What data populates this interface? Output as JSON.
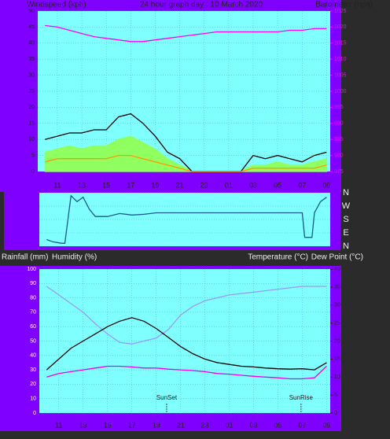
{
  "chart_data": [
    {
      "type": "line",
      "title": "24 hour graph day : 10 March 2020",
      "ylabel": "Windspeed (kph)",
      "y2label": "Barometer (hpa)",
      "x": [
        10,
        11,
        12,
        13,
        14,
        15,
        16,
        17,
        18,
        19,
        20,
        21,
        22,
        23,
        24,
        25,
        26,
        27,
        28,
        29,
        30,
        31,
        32,
        33
      ],
      "xlim": [
        9.4,
        33.3
      ],
      "xticks": [
        11,
        13,
        15,
        17,
        19,
        21,
        23,
        {
          "value": 25,
          "label": "01"
        },
        {
          "value": 27,
          "label": "03"
        },
        {
          "value": 29,
          "label": "05"
        },
        {
          "value": 31,
          "label": "07"
        },
        {
          "value": 33,
          "label": "09"
        }
      ],
      "ylim": [
        0,
        50
      ],
      "yticks": [
        0,
        5,
        10,
        15,
        20,
        25,
        30,
        35,
        40,
        45,
        50
      ],
      "y2lim": [
        975,
        1025
      ],
      "y2ticks": [
        975,
        980,
        985,
        990,
        995,
        1000,
        1005,
        1010,
        1015,
        1020,
        1025
      ],
      "series": [
        {
          "color": "#90ff60",
          "fill": true,
          "values": [
            6,
            7,
            8,
            7,
            8,
            8,
            10,
            11,
            9,
            7,
            4,
            2,
            0,
            0,
            0,
            0,
            0,
            2,
            2,
            3,
            2,
            2,
            3,
            4
          ]
        },
        {
          "color": "#000000",
          "values": [
            10,
            11,
            12,
            12,
            13,
            13,
            17,
            18,
            15,
            11,
            6,
            4,
            0,
            0,
            0,
            0,
            0,
            5,
            4,
            5,
            4,
            3,
            5,
            6
          ]
        },
        {
          "color": "#ff9900",
          "values": [
            3,
            4,
            4,
            4,
            4,
            4,
            5,
            5,
            4,
            3,
            2,
            1,
            0,
            0,
            0,
            0,
            0,
            1,
            1,
            1,
            1,
            1,
            1,
            2
          ]
        },
        {
          "color": "#ff00ff",
          "axis": "y2",
          "values": [
            1020.5,
            1020,
            1019,
            1018,
            1017,
            1016.5,
            1016,
            1015.5,
            1015.5,
            1016,
            1016.5,
            1017,
            1017.5,
            1018,
            1018.5,
            1018.5,
            1018.5,
            1018.5,
            1018.5,
            1018.5,
            1019,
            1019,
            1019.5,
            1019.5
          ]
        }
      ]
    },
    {
      "type": "line",
      "x": [
        10,
        10.5,
        11.2,
        11.5,
        12,
        12.5,
        13,
        13.5,
        14,
        15,
        16,
        17,
        18,
        19,
        20,
        22,
        24,
        26,
        28,
        30,
        31,
        31.2,
        31.8,
        32,
        32.5,
        33
      ],
      "xlim": [
        9.4,
        33.3
      ],
      "ylim": [
        0,
        360
      ],
      "yticks": [
        {
          "value": 360,
          "label": "N"
        },
        {
          "value": 270,
          "label": "W"
        },
        {
          "value": 180,
          "label": "S"
        },
        {
          "value": 90,
          "label": "E"
        },
        {
          "value": 0,
          "label": "N"
        }
      ],
      "series": [
        {
          "color": "#1a5a8a",
          "values": [
            45,
            30,
            20,
            20,
            340,
            300,
            330,
            250,
            200,
            200,
            220,
            210,
            215,
            225,
            225,
            225,
            225,
            225,
            225,
            225,
            225,
            60,
            60,
            225,
            300,
            330
          ]
        }
      ]
    },
    {
      "type": "line",
      "ylabel": "Humidity (%)",
      "rain_label": "Rainfall (mm)",
      "y2label": "Temperature (°C)",
      "y2label_2": "Dew Point (°C)",
      "x": [
        10,
        11,
        12,
        13,
        14,
        15,
        16,
        17,
        18,
        19,
        20,
        21,
        22,
        23,
        24,
        25,
        26,
        27,
        28,
        29,
        30,
        31,
        32,
        33
      ],
      "xlim": [
        9.4,
        33.3
      ],
      "xticks": [
        11,
        13,
        15,
        17,
        19,
        21,
        23,
        {
          "value": 25,
          "label": "01"
        },
        {
          "value": 27,
          "label": "03"
        },
        {
          "value": 29,
          "label": "05"
        },
        {
          "value": 31,
          "label": "07"
        },
        {
          "value": 33,
          "label": "09"
        }
      ],
      "ylim": [
        0,
        100
      ],
      "yticks": [
        0,
        10,
        20,
        30,
        40,
        50,
        60,
        70,
        80,
        90,
        100
      ],
      "y2lim": [
        0,
        40
      ],
      "y2ticks": [
        0,
        5,
        10,
        15,
        20,
        25,
        30,
        35,
        40
      ],
      "annotations": [
        {
          "text": "SunSet",
          "x": 19.86
        },
        {
          "text": "SunRise",
          "x": 30.9
        }
      ],
      "series": [
        {
          "color": "#9999ff",
          "values": [
            88,
            82,
            76,
            70,
            62,
            55,
            49,
            48,
            50,
            52,
            58,
            68,
            74,
            78,
            80,
            82,
            83,
            84,
            85,
            86,
            87,
            88,
            88,
            88
          ]
        },
        {
          "color": "#000000",
          "axis": "y2",
          "values": [
            12,
            15,
            18,
            20,
            22,
            24,
            25.5,
            26.5,
            25.5,
            23.5,
            21,
            18.5,
            16.5,
            15,
            14,
            13.5,
            13,
            12.8,
            12.5,
            12.3,
            12.2,
            12.3,
            12,
            14
          ]
        },
        {
          "color": "#ee00ee",
          "axis": "y2",
          "values": [
            10,
            11,
            11.5,
            12,
            12.5,
            13,
            13,
            12.8,
            12.5,
            12.5,
            12.2,
            12,
            11.8,
            11.5,
            11,
            10.8,
            10.5,
            10.2,
            10,
            9.8,
            9.5,
            9.5,
            9.8,
            13
          ]
        }
      ]
    }
  ]
}
